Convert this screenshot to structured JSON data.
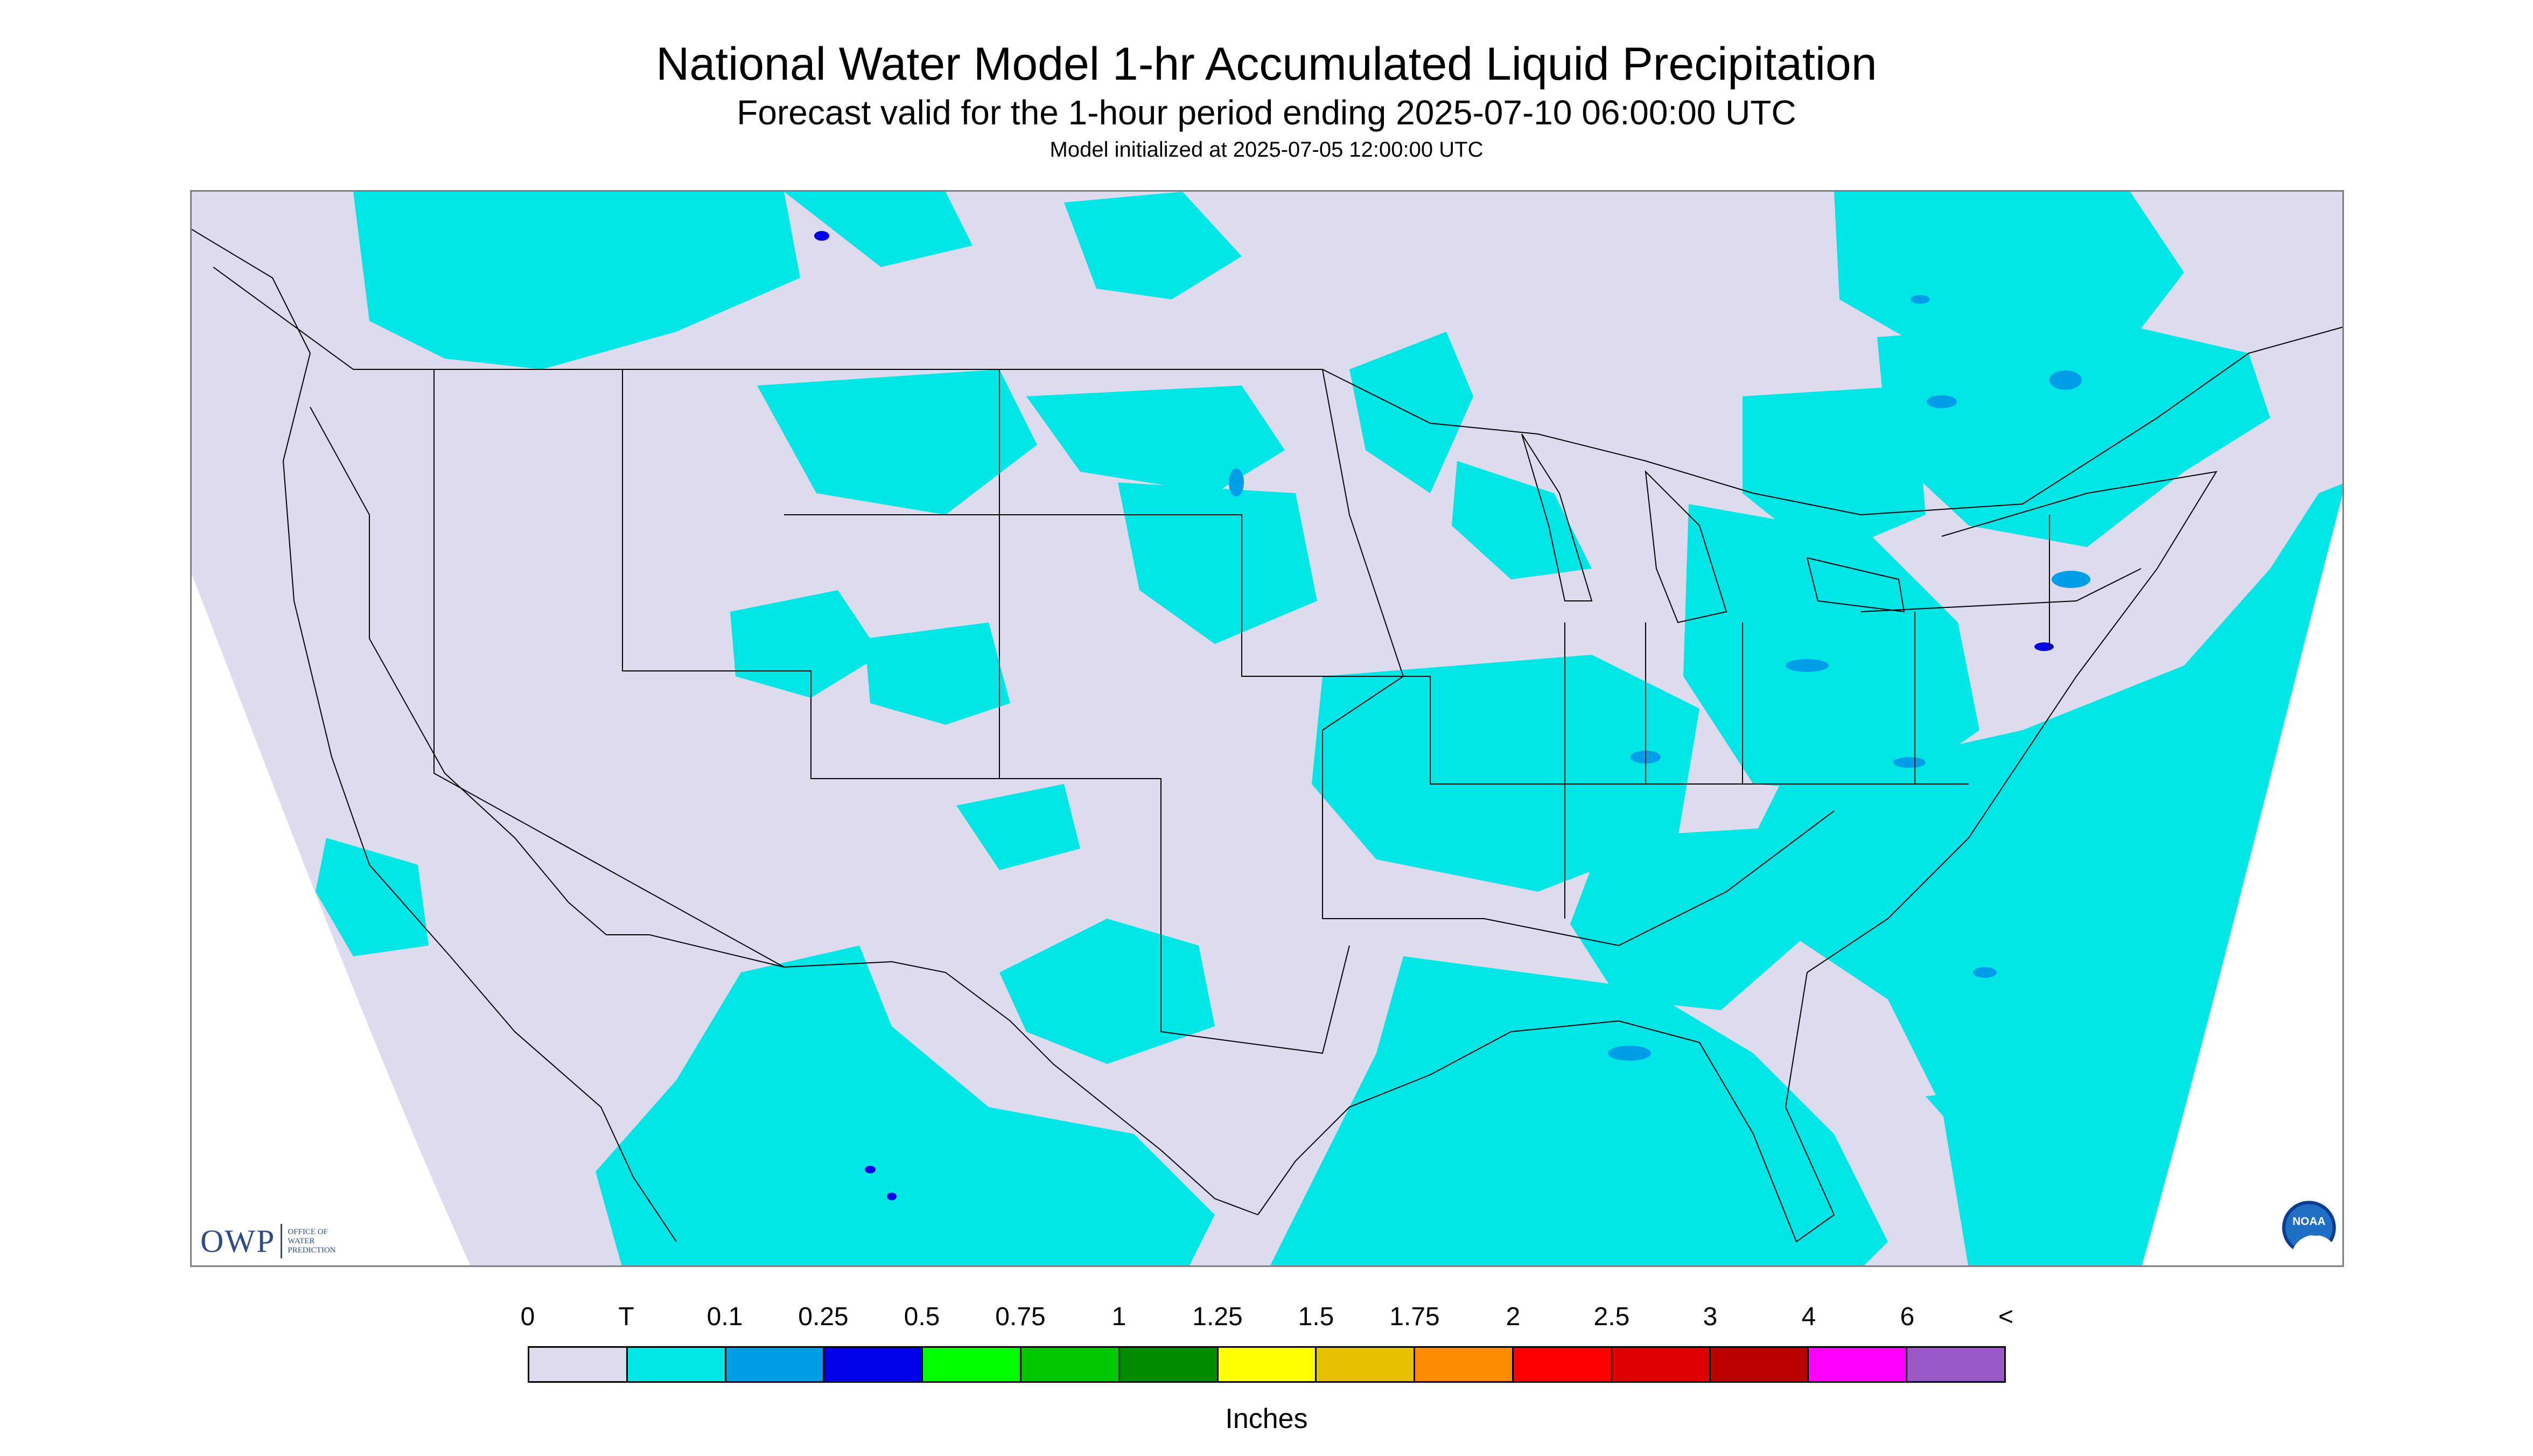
{
  "title": "National Water Model 1-hr Accumulated Liquid Precipitation",
  "subtitle": "Forecast valid for the 1-hour period ending 2025-07-10 06:00:00 UTC",
  "init_line": "Model initialized at 2025-07-05 12:00:00 UTC",
  "logos": {
    "owp_letters": "OWP",
    "owp_office": [
      "OFFICE OF",
      "WATER",
      "PREDICTION"
    ],
    "noaa_label": "NOAA"
  },
  "legend": {
    "unit_label": "Inches",
    "ticks": [
      "0",
      "T",
      "0.1",
      "0.25",
      "0.5",
      "0.75",
      "1",
      "1.25",
      "1.5",
      "1.75",
      "2",
      "2.5",
      "3",
      "4",
      "6",
      "<"
    ],
    "colors": [
      "#dcdcee",
      "#00e5e5",
      "#009ee8",
      "#0000e8",
      "#00ff00",
      "#00c800",
      "#008c00",
      "#ffff00",
      "#e5c000",
      "#ff8c00",
      "#ff0000",
      "#dd0000",
      "#bb0000",
      "#ff00ff",
      "#9b59c8"
    ]
  },
  "map": {
    "background_no_data": "#dcdcee",
    "precip_trace_color": "#00e5e5",
    "precip_light_color": "#009ee8",
    "precip_moderate_color": "#0000e8",
    "boundary_color": "#000000"
  }
}
